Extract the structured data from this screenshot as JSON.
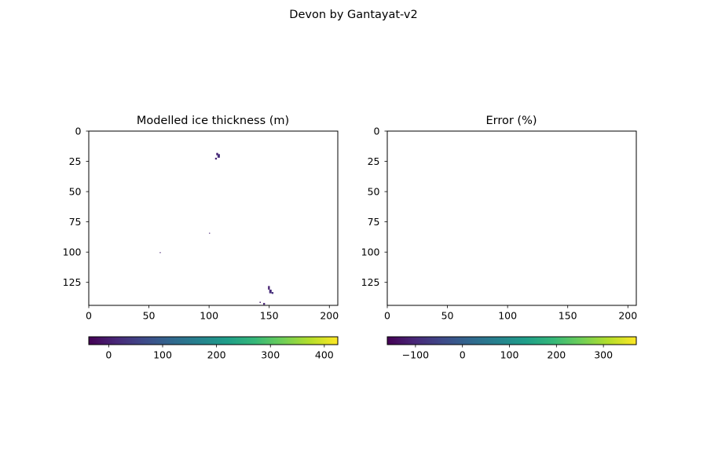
{
  "figure": {
    "suptitle": "Devon by Gantayat-v2"
  },
  "chart_data": [
    {
      "type": "heatmap",
      "title": "Modelled ice thickness (m)",
      "xlim": [
        0,
        207
      ],
      "ylim": [
        144,
        0
      ],
      "xticks": [
        0,
        50,
        100,
        150,
        200
      ],
      "yticks": [
        0,
        25,
        50,
        75,
        100,
        125
      ],
      "grid": false,
      "pixels": [
        {
          "x": 106,
          "y": 18,
          "w": 1.5,
          "h": 2,
          "value": 5
        },
        {
          "x": 107,
          "y": 19,
          "w": 2,
          "h": 3,
          "value": 25
        },
        {
          "x": 105,
          "y": 22,
          "w": 1.5,
          "h": 1.5,
          "value": 10
        },
        {
          "x": 100,
          "y": 84,
          "w": 0.8,
          "h": 0.8,
          "value": 10
        },
        {
          "x": 59,
          "y": 100,
          "w": 0.8,
          "h": 0.8,
          "value": 10
        },
        {
          "x": 149,
          "y": 128,
          "w": 1.5,
          "h": 3,
          "value": 5
        },
        {
          "x": 150,
          "y": 131,
          "w": 2,
          "h": 3,
          "value": 20
        },
        {
          "x": 152,
          "y": 133,
          "w": 1.5,
          "h": 1.5,
          "value": 30
        },
        {
          "x": 142,
          "y": 141,
          "w": 1,
          "h": 1,
          "value": 5
        },
        {
          "x": 145,
          "y": 142,
          "w": 1.5,
          "h": 1.5,
          "value": 10
        }
      ],
      "colorbar": {
        "orientation": "horizontal",
        "range": [
          -37,
          425
        ],
        "ticks": [
          0,
          100,
          200,
          300,
          400
        ],
        "colormap": "viridis"
      }
    },
    {
      "type": "heatmap",
      "title": "Error (%)",
      "xlim": [
        0,
        207
      ],
      "ylim": [
        144,
        0
      ],
      "xticks": [
        0,
        50,
        100,
        150,
        200
      ],
      "yticks": [
        0,
        25,
        50,
        75,
        100,
        125
      ],
      "grid": false,
      "pixels": [],
      "colorbar": {
        "orientation": "horizontal",
        "range": [
          -160,
          370
        ],
        "ticks": [
          -100,
          0,
          100,
          200,
          300
        ],
        "colormap": "viridis"
      }
    }
  ],
  "colors": {
    "viridis": [
      "#440154",
      "#482878",
      "#3e4a89",
      "#31688e",
      "#26828e",
      "#1f9e89",
      "#35b779",
      "#6ece58",
      "#b5de2b",
      "#fde725"
    ]
  }
}
